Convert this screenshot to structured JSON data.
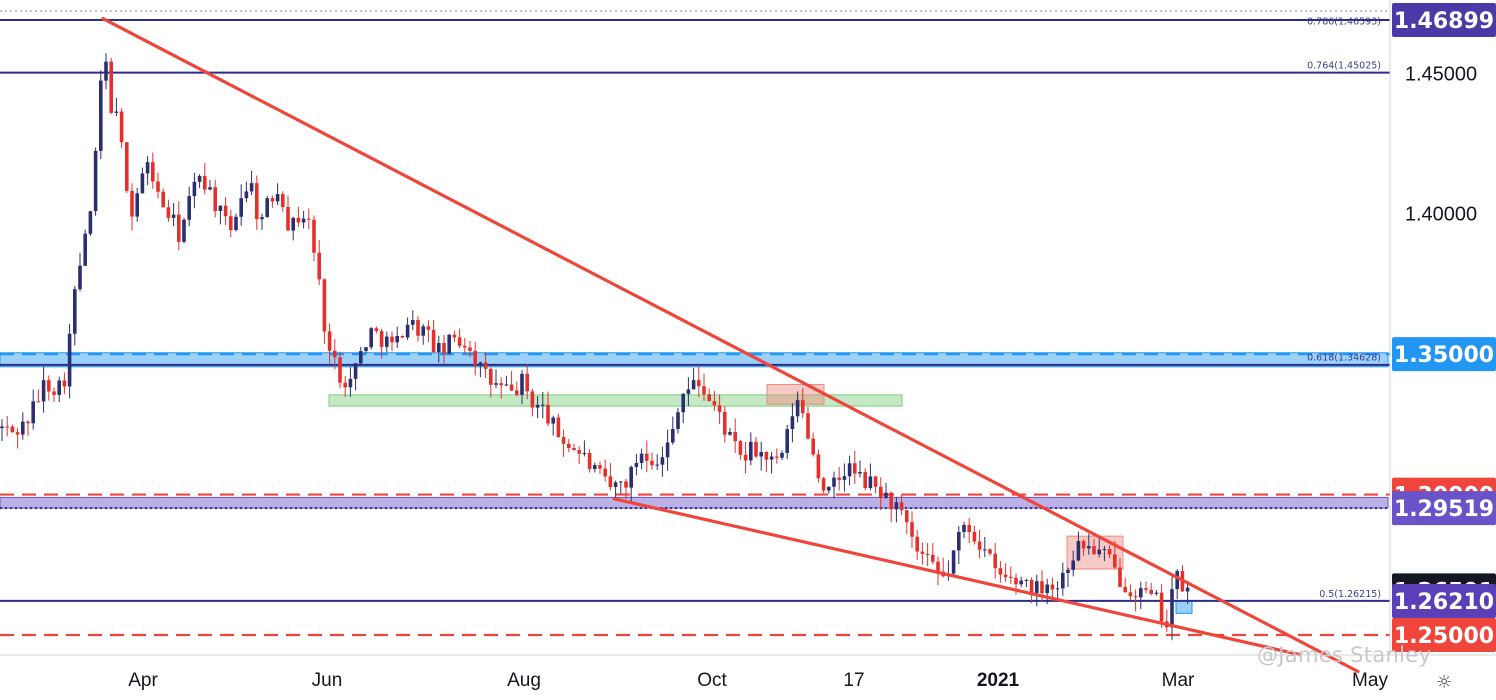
{
  "chart_data": {
    "type": "candlestick",
    "symbol_hint": "GBPUSD-style daily",
    "y_axis": {
      "min": 1.235,
      "max": 1.475,
      "position": "right",
      "ticks": [
        {
          "value": 1.45,
          "label": "1.45000"
        },
        {
          "value": 1.4,
          "label": "1.40000"
        }
      ]
    },
    "x_axis": {
      "labels": [
        {
          "label": "Apr",
          "bold": false
        },
        {
          "label": "Jun",
          "bold": false
        },
        {
          "label": "Aug",
          "bold": false
        },
        {
          "label": "Oct",
          "bold": false
        },
        {
          "label": "17",
          "bold": false
        },
        {
          "label": "2021",
          "bold": true
        },
        {
          "label": "Mar",
          "bold": false
        },
        {
          "label": "May",
          "bold": false
        }
      ]
    },
    "price_labels": [
      {
        "value": 1.46899,
        "label": "1.46899",
        "bg": "#4a3aa5",
        "fg": "#ffffff"
      },
      {
        "value": 1.35,
        "label": "1.35000",
        "bg": "#2196f3",
        "fg": "#ffffff"
      },
      {
        "value": 1.3,
        "label": "1.30000",
        "bg": "#f0453a",
        "fg": "#ffffff"
      },
      {
        "value": 1.29519,
        "label": "1.29519",
        "bg": "#6a52c8",
        "fg": "#ffffff"
      },
      {
        "value": 1.26591,
        "label": "1.26591",
        "bg": "#131722",
        "fg": "#ffffff"
      },
      {
        "value": 1.2621,
        "label": "1.26210",
        "bg": "#5b3fb8",
        "fg": "#ffffff"
      },
      {
        "value": 1.25,
        "label": "1.25000",
        "bg": "#f0453a",
        "fg": "#ffffff"
      }
    ],
    "fib_labels": [
      {
        "value": 1.46593,
        "label": "0.786(1.46593)"
      },
      {
        "value": 1.45025,
        "label": "0.764(1.45025)"
      },
      {
        "value": 1.34628,
        "label": "0.618(1.34628)"
      },
      {
        "value": 1.26215,
        "label": "0.5(1.26215)"
      }
    ],
    "horizontal_levels": [
      {
        "value": 1.46899,
        "style": "solid",
        "color": "#2a2e8a"
      },
      {
        "value": 1.4722,
        "style": "dotted",
        "color": "#888888"
      },
      {
        "value": 1.45025,
        "style": "solid",
        "color": "#2a2e8a"
      },
      {
        "value": 1.3462,
        "style": "solid",
        "color": "#2a2e8a"
      },
      {
        "value": 1.35,
        "style": "dashed",
        "color": "#2196f3"
      },
      {
        "value": 1.3,
        "style": "dashed",
        "color": "#f0453a"
      },
      {
        "value": 1.29519,
        "style": "dotted",
        "color": "#2a2e8a"
      },
      {
        "value": 1.26215,
        "style": "solid",
        "color": "#2a2e8a"
      },
      {
        "value": 1.25,
        "style": "dashed",
        "color": "#f0453a"
      }
    ],
    "zones": [
      {
        "name": "blue-zone",
        "x0": 0,
        "x1": 1388,
        "y0": 1.3455,
        "y1": 1.3505,
        "color": "#2196f3"
      },
      {
        "name": "purple-zone",
        "x0": 0,
        "x1": 1388,
        "y0": 1.2952,
        "y1": 1.299,
        "color": "#6a52c8"
      },
      {
        "name": "green-zone",
        "x0": 329,
        "x1": 902,
        "y0": 1.3355,
        "y1": 1.3315,
        "color": "#7ccf7c"
      },
      {
        "name": "red-box-oct",
        "x0": 767,
        "x1": 824,
        "y0": 1.3392,
        "y1": 1.3322,
        "color": "#f08a80"
      },
      {
        "name": "red-box-jan",
        "x0": 1067,
        "x1": 1123,
        "y0": 1.2852,
        "y1": 1.2735,
        "color": "#f08a80"
      },
      {
        "name": "blue-box-mar",
        "x0": 1176,
        "x1": 1192,
        "y0": 1.2622,
        "y1": 1.2577,
        "color": "#2196f3"
      }
    ],
    "trendlines": [
      {
        "name": "upper-trendline",
        "x0": 103,
        "y0": 1.4695,
        "x1": 1358,
        "y1": 1.237,
        "color": "#f0453a"
      },
      {
        "name": "lower-trendline",
        "x0": 614,
        "y0": 1.2985,
        "x1": 1300,
        "y1": 1.243,
        "color": "#f0453a"
      }
    ],
    "series_anchors": [
      [
        0,
        1.324
      ],
      [
        12,
        1.322
      ],
      [
        25,
        1.325
      ],
      [
        35,
        1.332
      ],
      [
        45,
        1.34
      ],
      [
        58,
        1.338
      ],
      [
        66,
        1.343
      ],
      [
        72,
        1.365
      ],
      [
        80,
        1.382
      ],
      [
        88,
        1.395
      ],
      [
        94,
        1.41
      ],
      [
        100,
        1.445
      ],
      [
        105,
        1.455
      ],
      [
        110,
        1.44
      ],
      [
        118,
        1.432
      ],
      [
        125,
        1.415
      ],
      [
        132,
        1.4
      ],
      [
        140,
        1.412
      ],
      [
        150,
        1.418
      ],
      [
        158,
        1.406
      ],
      [
        168,
        1.4
      ],
      [
        180,
        1.392
      ],
      [
        190,
        1.405
      ],
      [
        200,
        1.415
      ],
      [
        210,
        1.408
      ],
      [
        220,
        1.4
      ],
      [
        230,
        1.393
      ],
      [
        240,
        1.406
      ],
      [
        250,
        1.412
      ],
      [
        260,
        1.396
      ],
      [
        270,
        1.405
      ],
      [
        280,
        1.41
      ],
      [
        290,
        1.394
      ],
      [
        300,
        1.4
      ],
      [
        308,
        1.398
      ],
      [
        316,
        1.383
      ],
      [
        324,
        1.362
      ],
      [
        330,
        1.35
      ],
      [
        340,
        1.343
      ],
      [
        350,
        1.34
      ],
      [
        360,
        1.35
      ],
      [
        370,
        1.358
      ],
      [
        382,
        1.356
      ],
      [
        395,
        1.352
      ],
      [
        405,
        1.362
      ],
      [
        415,
        1.36
      ],
      [
        425,
        1.358
      ],
      [
        440,
        1.35
      ],
      [
        455,
        1.356
      ],
      [
        470,
        1.353
      ],
      [
        480,
        1.345
      ],
      [
        490,
        1.34
      ],
      [
        500,
        1.338
      ],
      [
        512,
        1.336
      ],
      [
        522,
        1.34
      ],
      [
        534,
        1.332
      ],
      [
        545,
        1.33
      ],
      [
        556,
        1.322
      ],
      [
        568,
        1.318
      ],
      [
        580,
        1.315
      ],
      [
        595,
        1.308
      ],
      [
        610,
        1.302
      ],
      [
        620,
        1.304
      ],
      [
        630,
        1.306
      ],
      [
        640,
        1.316
      ],
      [
        650,
        1.314
      ],
      [
        662,
        1.312
      ],
      [
        672,
        1.322
      ],
      [
        680,
        1.336
      ],
      [
        690,
        1.338
      ],
      [
        700,
        1.34
      ],
      [
        710,
        1.333
      ],
      [
        720,
        1.328
      ],
      [
        732,
        1.318
      ],
      [
        742,
        1.312
      ],
      [
        752,
        1.316
      ],
      [
        764,
        1.314
      ],
      [
        776,
        1.31
      ],
      [
        786,
        1.318
      ],
      [
        795,
        1.334
      ],
      [
        804,
        1.328
      ],
      [
        812,
        1.316
      ],
      [
        820,
        1.306
      ],
      [
        828,
        1.3
      ],
      [
        838,
        1.305
      ],
      [
        848,
        1.31
      ],
      [
        858,
        1.306
      ],
      [
        868,
        1.304
      ],
      [
        878,
        1.302
      ],
      [
        888,
        1.298
      ],
      [
        898,
        1.295
      ],
      [
        906,
        1.288
      ],
      [
        916,
        1.28
      ],
      [
        926,
        1.276
      ],
      [
        936,
        1.272
      ],
      [
        946,
        1.27
      ],
      [
        956,
        1.282
      ],
      [
        966,
        1.29
      ],
      [
        976,
        1.285
      ],
      [
        986,
        1.279
      ],
      [
        996,
        1.272
      ],
      [
        1006,
        1.27
      ],
      [
        1016,
        1.269
      ],
      [
        1026,
        1.27
      ],
      [
        1036,
        1.266
      ],
      [
        1046,
        1.27
      ],
      [
        1056,
        1.266
      ],
      [
        1066,
        1.274
      ],
      [
        1076,
        1.281
      ],
      [
        1086,
        1.282
      ],
      [
        1096,
        1.28
      ],
      [
        1106,
        1.278
      ],
      [
        1116,
        1.272
      ],
      [
        1126,
        1.268
      ],
      [
        1136,
        1.266
      ],
      [
        1146,
        1.264
      ],
      [
        1156,
        1.262
      ],
      [
        1164,
        1.256
      ],
      [
        1168,
        1.254
      ],
      [
        1172,
        1.266
      ],
      [
        1178,
        1.27
      ],
      [
        1184,
        1.266
      ],
      [
        1190,
        1.265
      ]
    ]
  },
  "watermark": "@James Stanley"
}
